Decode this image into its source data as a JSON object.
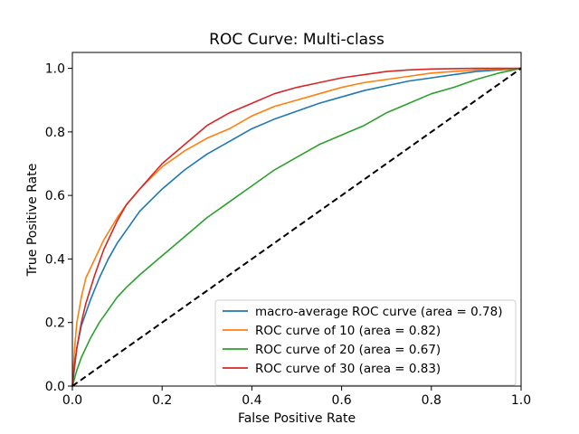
{
  "chart_data": {
    "type": "line",
    "title": "ROC Curve: Multi-class",
    "xlabel": "False Positive Rate",
    "ylabel": "True Positive Rate",
    "xlim": [
      0,
      1
    ],
    "ylim": [
      0,
      1.05
    ],
    "xticks": [
      "0.0",
      "0.2",
      "0.4",
      "0.6",
      "0.8",
      "1.0"
    ],
    "yticks": [
      "0.0",
      "0.2",
      "0.4",
      "0.6",
      "0.8",
      "1.0"
    ],
    "grid": false,
    "legend_position": "lower-right",
    "series": [
      {
        "name": "macro-average ROC curve (area = 0.78)",
        "color": "#1f77b4",
        "x": [
          0,
          0.01,
          0.02,
          0.04,
          0.06,
          0.08,
          0.1,
          0.12,
          0.15,
          0.2,
          0.25,
          0.3,
          0.35,
          0.4,
          0.45,
          0.5,
          0.55,
          0.6,
          0.65,
          0.7,
          0.75,
          0.8,
          0.85,
          0.9,
          0.95,
          1.0
        ],
        "y": [
          0,
          0.12,
          0.19,
          0.27,
          0.34,
          0.4,
          0.45,
          0.49,
          0.55,
          0.62,
          0.68,
          0.73,
          0.77,
          0.81,
          0.84,
          0.865,
          0.89,
          0.91,
          0.93,
          0.945,
          0.96,
          0.97,
          0.98,
          0.99,
          0.995,
          1.0
        ]
      },
      {
        "name": "ROC curve of 10 (area = 0.82)",
        "color": "#ff7f0e",
        "x": [
          0,
          0.005,
          0.01,
          0.02,
          0.03,
          0.05,
          0.07,
          0.1,
          0.12,
          0.15,
          0.2,
          0.25,
          0.3,
          0.35,
          0.4,
          0.45,
          0.5,
          0.55,
          0.6,
          0.65,
          0.7,
          0.75,
          0.8,
          0.85,
          0.9,
          0.95,
          1.0
        ],
        "y": [
          0,
          0.12,
          0.2,
          0.28,
          0.34,
          0.4,
          0.46,
          0.53,
          0.57,
          0.62,
          0.69,
          0.74,
          0.78,
          0.81,
          0.85,
          0.88,
          0.9,
          0.92,
          0.94,
          0.955,
          0.965,
          0.975,
          0.985,
          0.99,
          0.995,
          0.998,
          1.0
        ]
      },
      {
        "name": "ROC curve of 20 (area = 0.67)",
        "color": "#2ca02c",
        "x": [
          0,
          0.01,
          0.02,
          0.04,
          0.06,
          0.08,
          0.1,
          0.12,
          0.15,
          0.2,
          0.25,
          0.3,
          0.35,
          0.4,
          0.45,
          0.5,
          0.55,
          0.6,
          0.65,
          0.7,
          0.75,
          0.8,
          0.85,
          0.9,
          0.95,
          1.0
        ],
        "y": [
          0,
          0.05,
          0.09,
          0.15,
          0.2,
          0.24,
          0.28,
          0.31,
          0.35,
          0.41,
          0.47,
          0.53,
          0.58,
          0.63,
          0.68,
          0.72,
          0.76,
          0.79,
          0.82,
          0.86,
          0.89,
          0.92,
          0.94,
          0.965,
          0.985,
          1.0
        ]
      },
      {
        "name": "ROC curve of 30 (area = 0.83)",
        "color": "#d62728",
        "x": [
          0,
          0.005,
          0.01,
          0.02,
          0.03,
          0.05,
          0.07,
          0.1,
          0.12,
          0.15,
          0.2,
          0.25,
          0.3,
          0.35,
          0.4,
          0.45,
          0.5,
          0.55,
          0.6,
          0.65,
          0.7,
          0.75,
          0.8,
          0.85,
          0.9,
          0.95,
          1.0
        ],
        "y": [
          0,
          0.07,
          0.12,
          0.2,
          0.26,
          0.35,
          0.43,
          0.52,
          0.57,
          0.62,
          0.7,
          0.76,
          0.82,
          0.86,
          0.89,
          0.92,
          0.94,
          0.955,
          0.97,
          0.98,
          0.99,
          0.995,
          0.998,
          0.999,
          1.0,
          1.0,
          1.0
        ]
      },
      {
        "name": "",
        "color": "#000000",
        "dashed": true,
        "x": [
          0,
          1
        ],
        "y": [
          0,
          1
        ]
      }
    ]
  }
}
